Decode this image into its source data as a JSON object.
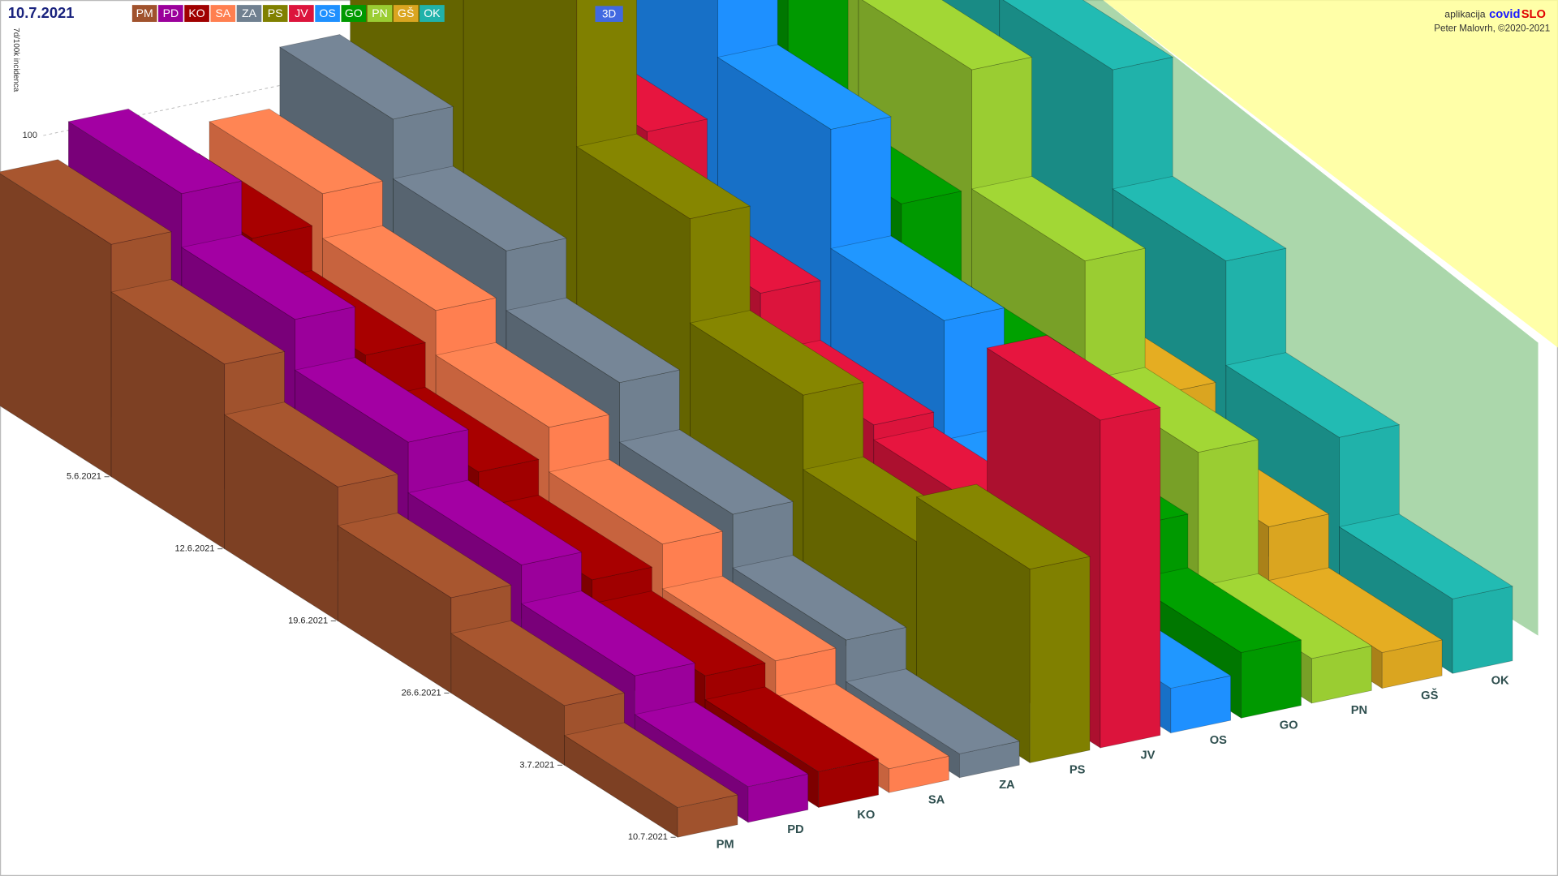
{
  "chart_data": {
    "type": "bar3d",
    "title": "10.7.2021",
    "y_label": "7d/100k incidenca",
    "categories": [
      "5.6.2021",
      "12.6.2021",
      "19.6.2021",
      "26.6.2021",
      "3.7.2021",
      "10.7.2021"
    ],
    "ylim": [
      0,
      250
    ],
    "yticks": [
      100
    ],
    "series": [
      {
        "name": "PM",
        "color": "#a0522d",
        "values": [
          78,
          62,
          45,
          32,
          20,
          10
        ]
      },
      {
        "name": "PD",
        "color": "#9b009b",
        "values": [
          90,
          72,
          55,
          38,
          25,
          12
        ]
      },
      {
        "name": "KO",
        "color": "#a00000",
        "values": [
          70,
          55,
          40,
          28,
          20,
          12
        ]
      },
      {
        "name": "SA",
        "color": "#ff7f50",
        "values": [
          80,
          65,
          50,
          35,
          20,
          8
        ]
      },
      {
        "name": "ZA",
        "color": "#708090",
        "values": [
          100,
          80,
          60,
          40,
          22,
          8
        ]
      },
      {
        "name": "PS",
        "color": "#808000",
        "values": [
          220,
          160,
          110,
          75,
          50,
          65
        ]
      },
      {
        "name": "JV",
        "color": "#dc143c",
        "values": [
          150,
          110,
          80,
          60,
          55,
          110
        ]
      },
      {
        "name": "OS",
        "color": "#1e90ff",
        "values": [
          230,
          180,
          130,
          90,
          50,
          15
        ]
      },
      {
        "name": "GO",
        "color": "#009900",
        "values": [
          200,
          150,
          100,
          70,
          40,
          22
        ]
      },
      {
        "name": "PN",
        "color": "#9acd32",
        "values": [
          240,
          190,
          140,
          100,
          60,
          15
        ]
      },
      {
        "name": "GŠ",
        "color": "#daa520",
        "values": [
          150,
          110,
          75,
          50,
          30,
          12
        ]
      },
      {
        "name": "OK",
        "color": "#20b2aa",
        "values": [
          210,
          170,
          130,
          90,
          55,
          25
        ]
      }
    ]
  },
  "ui": {
    "mode_button": "3D",
    "app_prefix": "aplikacija",
    "app_name_a": "covid",
    "app_name_b": "SLO",
    "author": "Peter Malovrh, ©2020-2021"
  }
}
